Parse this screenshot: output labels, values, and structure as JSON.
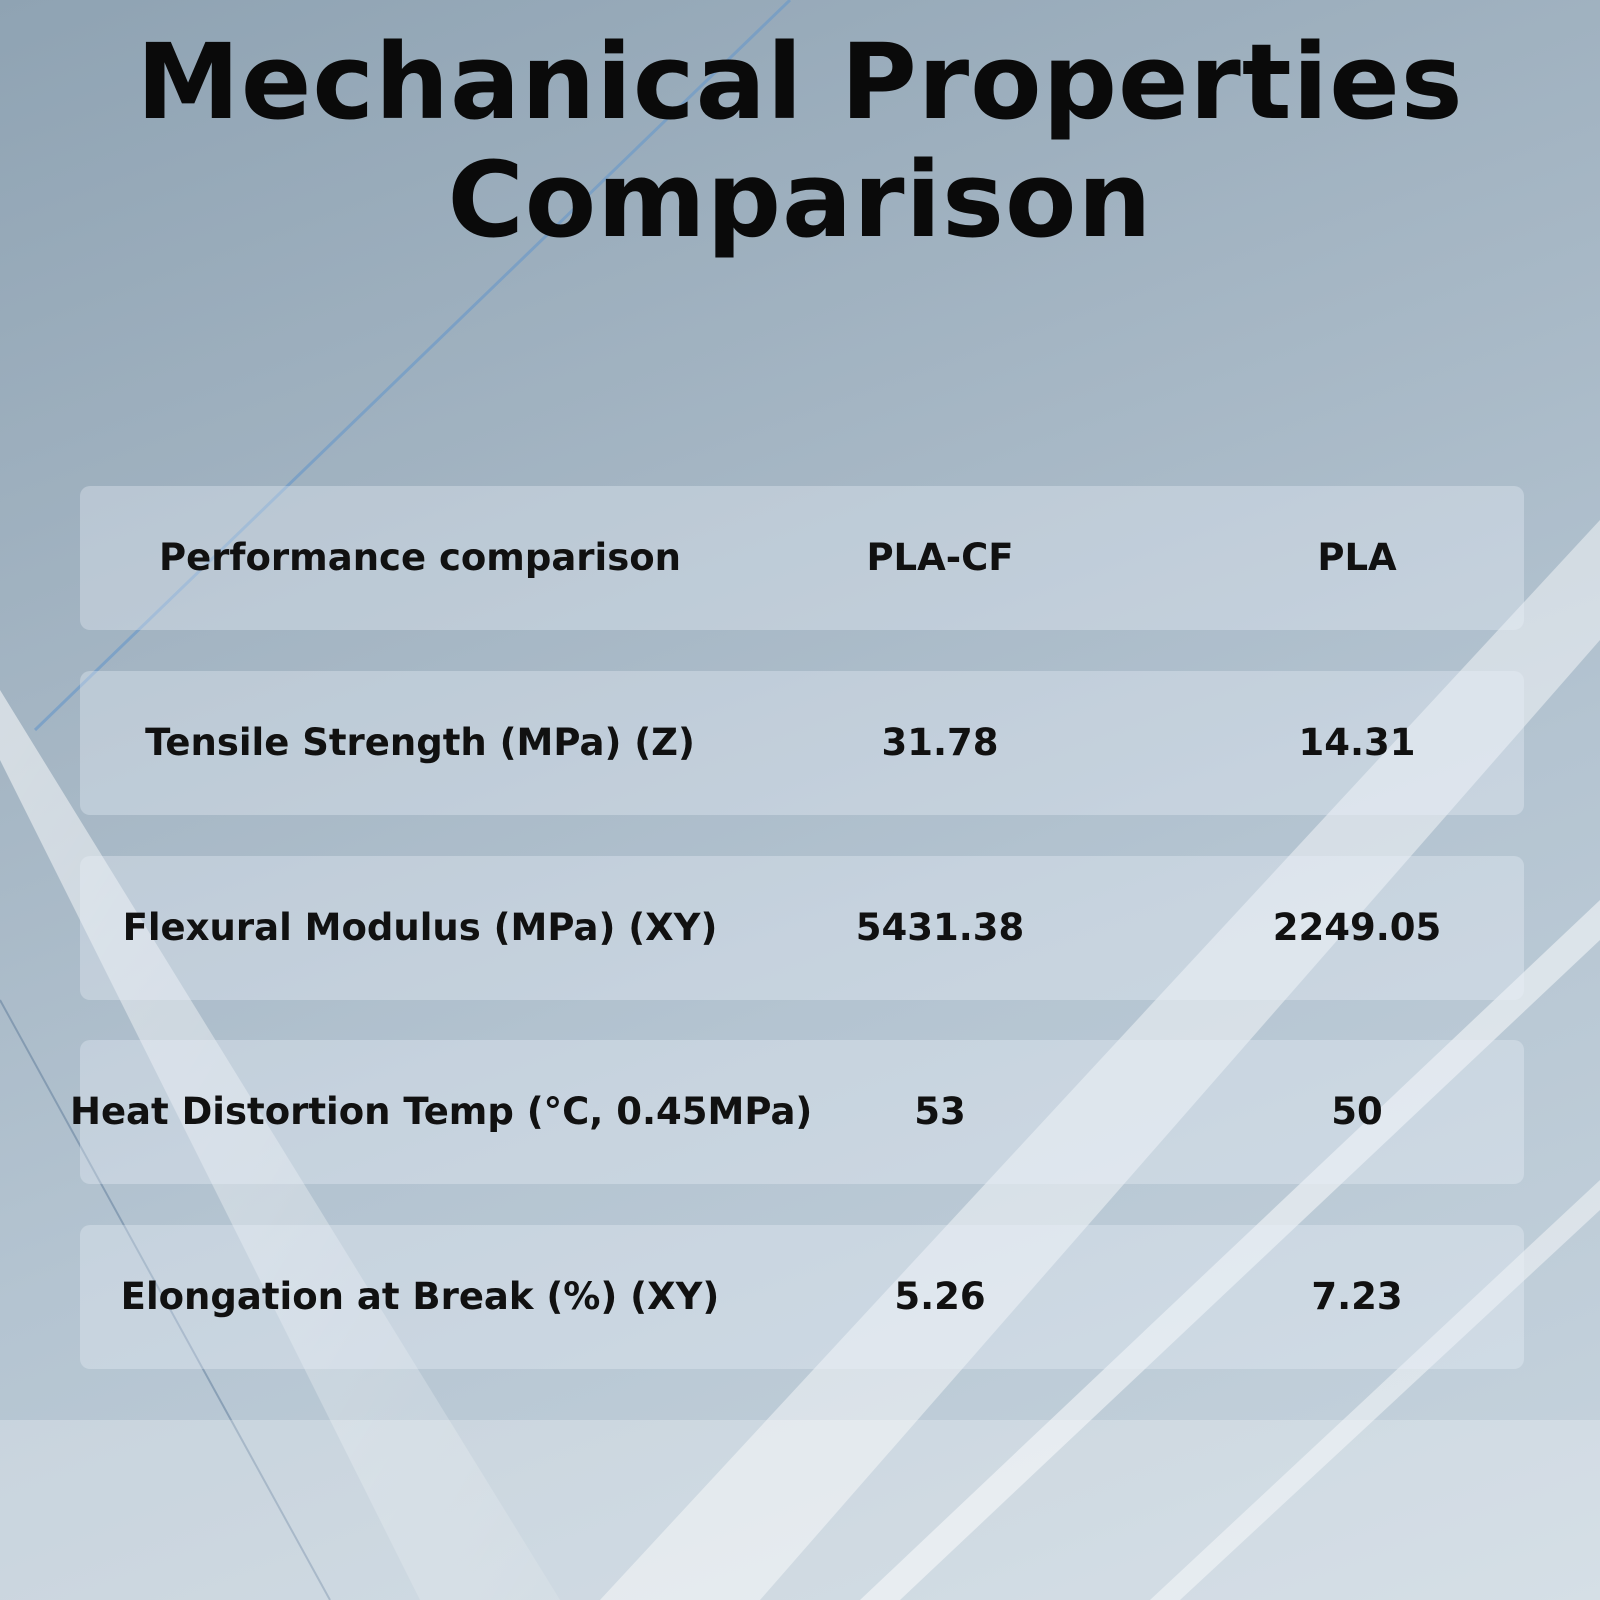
{
  "title": [
    "Mechanical Properties",
    "Comparison"
  ],
  "table": {
    "header": [
      "Performance comparison",
      "PLA-CF",
      "PLA"
    ],
    "rows": [
      [
        "Tensile Strength (MPa) (Z)",
        "31.78",
        "14.31"
      ],
      [
        "Flexural Modulus (MPa) (XY)",
        "5431.38",
        "2249.05"
      ],
      [
        "Heat Distortion Temp (°C, 0.45MPa)",
        "53",
        "50"
      ],
      [
        "Elongation at Break (%) (XY)",
        "5.26",
        "7.23"
      ]
    ]
  }
}
